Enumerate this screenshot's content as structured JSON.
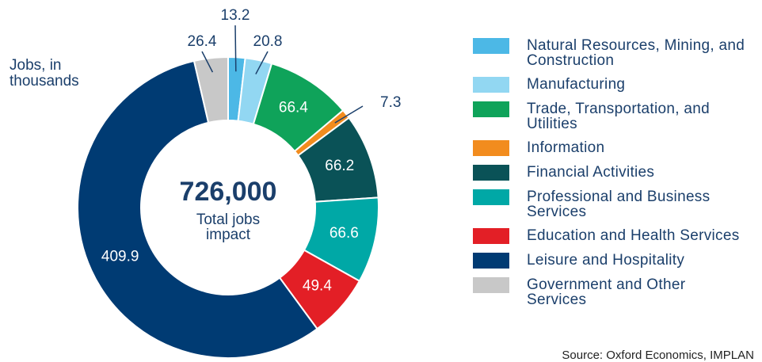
{
  "chart_data": {
    "type": "donut",
    "unit_label": [
      "Jobs, in",
      "thousands"
    ],
    "center_label": "726,000",
    "center_sublabel": [
      "Total jobs",
      "impact"
    ],
    "categories": [
      "Natural Resources, Mining, and Construction",
      "Manufacturing",
      "Trade, Transportation, and Utilities",
      "Information",
      "Financial Activities",
      "Professional and Business Services",
      "Education and Health Services",
      "Leisure and Hospitality",
      "Government and Other Services"
    ],
    "values": [
      13.2,
      20.8,
      66.4,
      7.3,
      66.2,
      66.6,
      49.4,
      409.9,
      26.4
    ],
    "colors": [
      "#4cb8e6",
      "#92d7f2",
      "#0fa35a",
      "#f28c1e",
      "#0a5257",
      "#00a8a6",
      "#e31f26",
      "#003b73",
      "#c8c8c8"
    ],
    "source": "Source: Oxford Economics, IMPLAN"
  }
}
